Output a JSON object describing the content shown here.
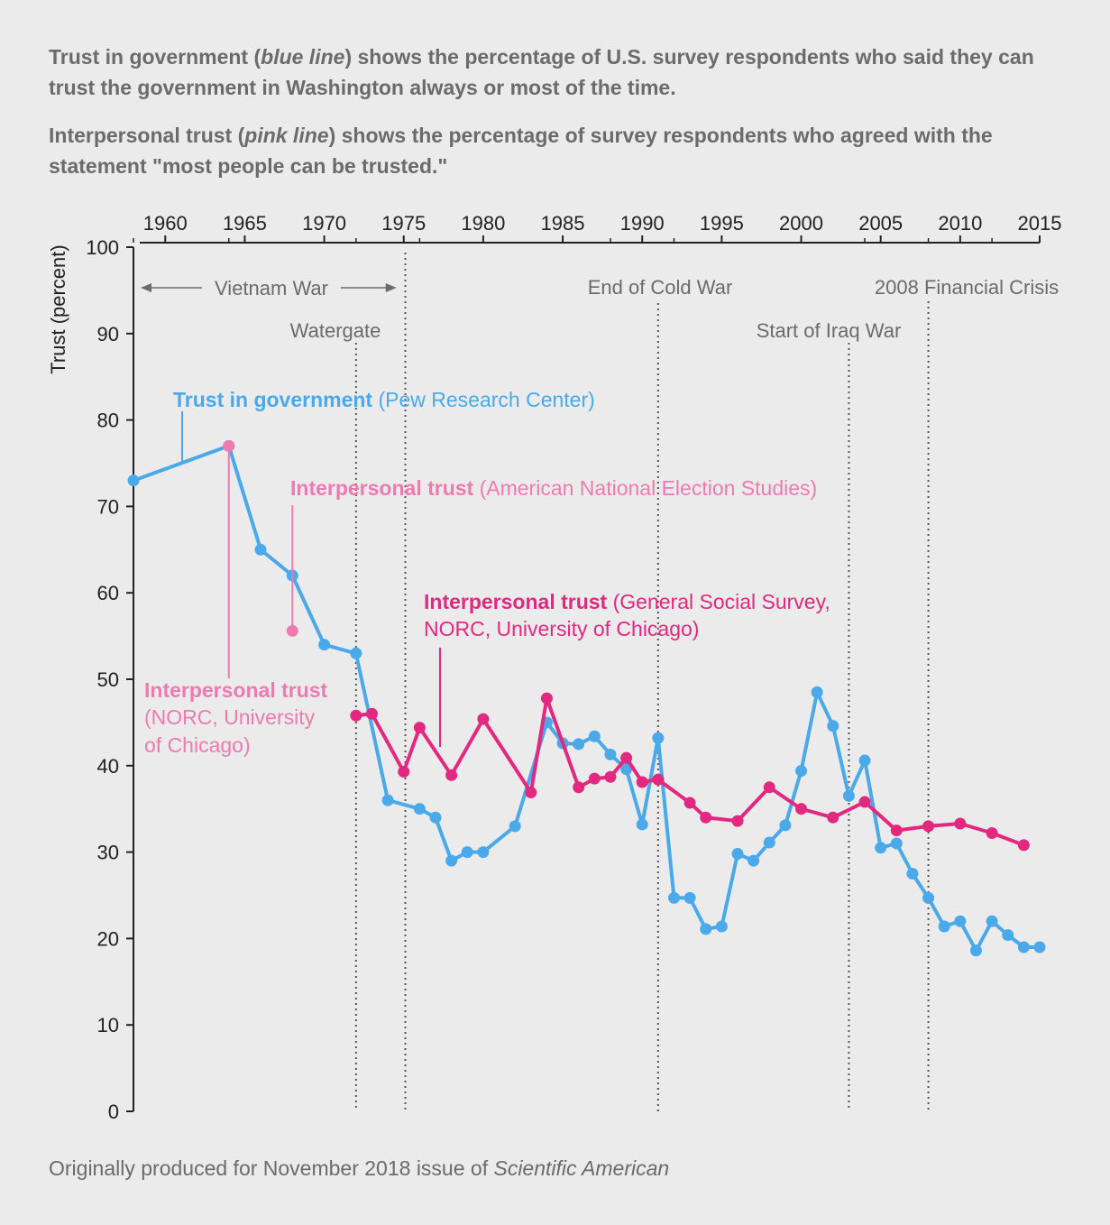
{
  "intro": {
    "p1_a": "Trust in government (",
    "p1_em": "blue line",
    "p1_b": ") shows the percentage of U.S. survey respondents who said they can trust the government in Washington always or most of the time.",
    "p2_a": "Interpersonal trust (",
    "p2_em": "pink line",
    "p2_b": ") shows the percentage of survey respondents who agreed with the statement \"most people can be trusted.\""
  },
  "footer": {
    "text": "Originally produced for November 2018 issue of ",
    "em": "Scientific American"
  },
  "colors": {
    "background": "#ebebeb",
    "government": "#4aa9ea",
    "gss": "#e3287f",
    "anes": "#ef7ab2",
    "norc": "#ef7ab2",
    "text": "#6b6b6b"
  },
  "chart_data": {
    "type": "line",
    "ylabel": "Trust (percent)",
    "xlabel": "",
    "xlim": [
      1958,
      2015
    ],
    "ylim": [
      0,
      100
    ],
    "xticks": [
      1960,
      1965,
      1970,
      1975,
      1980,
      1985,
      1990,
      1995,
      2000,
      2005,
      2010,
      2015
    ],
    "yticks": [
      0,
      10,
      20,
      30,
      40,
      50,
      60,
      70,
      80,
      90,
      100
    ],
    "grid": false,
    "events": [
      {
        "label": "Watergate",
        "year": 1972
      },
      {
        "label": "",
        "year": 1975.1
      },
      {
        "label": "End of Cold War",
        "year": 1991
      },
      {
        "label": "Start of Iraq War",
        "year": 2003
      },
      {
        "label": "2008 Financial Crisis",
        "year": 2008
      }
    ],
    "vietnam_war_label": "Vietnam War",
    "vietnam_war_range": [
      1958,
      1975
    ],
    "series": [
      {
        "name": "Trust in government",
        "source": "(Pew Research Center)",
        "x": [
          1958,
          1964,
          1966,
          1968,
          1970,
          1972,
          1974,
          1976,
          1977,
          1978,
          1979,
          1980,
          1982,
          1984,
          1985,
          1986,
          1987,
          1988,
          1989,
          1990,
          1991,
          1992,
          1993,
          1994,
          1995,
          1996,
          1997,
          1998,
          1999,
          2000,
          2001,
          2002,
          2003,
          2004,
          2005,
          2006,
          2007,
          2008,
          2009,
          2010,
          2011,
          2012,
          2013,
          2014,
          2015
        ],
        "y": [
          73,
          77,
          65,
          62,
          54,
          53,
          36,
          35,
          34,
          29,
          30,
          30,
          33,
          45,
          42.6,
          42.5,
          43.4,
          41.3,
          39.6,
          33.2,
          43.2,
          24.7,
          24.7,
          21.1,
          21.4,
          29.8,
          29,
          31.1,
          33.1,
          39.4,
          48.5,
          44.6,
          36.5,
          40.6,
          30.5,
          31,
          27.5,
          24.7,
          21.4,
          22,
          18.6,
          22,
          20.4,
          19,
          19
        ]
      },
      {
        "name": "Interpersonal trust",
        "source": "(General Social Survey, NORC, University of Chicago)",
        "x": [
          1972,
          1973,
          1975,
          1976,
          1978,
          1980,
          1983,
          1984,
          1986,
          1987,
          1988,
          1989,
          1990,
          1991,
          1993,
          1994,
          1996,
          1998,
          2000,
          2002,
          2004,
          2006,
          2008,
          2010,
          2012,
          2014
        ],
        "y": [
          45.8,
          46,
          39.3,
          44.4,
          38.9,
          45.4,
          36.9,
          47.8,
          37.5,
          38.5,
          38.7,
          40.9,
          38.1,
          38.4,
          35.7,
          34,
          33.6,
          37.5,
          35,
          34,
          35.8,
          32.5,
          33,
          33.3,
          32.2,
          30.8
        ]
      },
      {
        "name": "Interpersonal trust",
        "source": "(American National Election Studies)",
        "x": [
          1968
        ],
        "y": [
          55.6
        ]
      },
      {
        "name": "Interpersonal trust",
        "source": "(NORC, University of Chicago)",
        "x": [
          1964
        ],
        "y": [
          77
        ]
      }
    ],
    "labels": {
      "gov_bold": "Trust in government",
      "gov_src": "(Pew Research Center)",
      "anes_bold": "Interpersonal trust",
      "anes_src": "(American National Election Studies)",
      "gss_bold": "Interpersonal trust",
      "gss_src1": "(General Social Survey,",
      "gss_src2": "NORC, University of Chicago)",
      "norc_bold": "Interpersonal trust",
      "norc_src1": "(NORC, University",
      "norc_src2": "of Chicago)"
    }
  }
}
